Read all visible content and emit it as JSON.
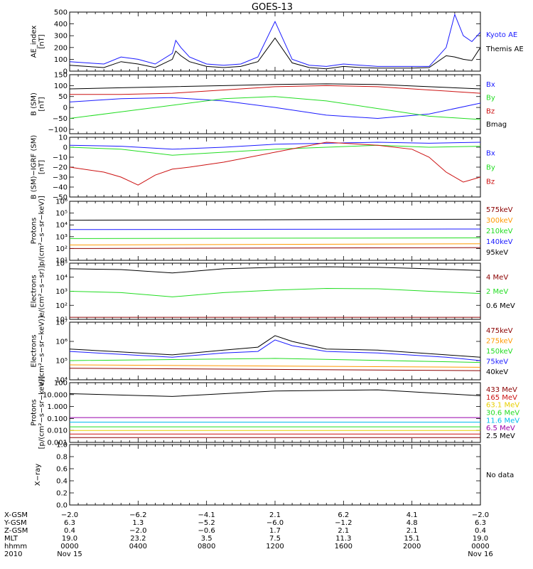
{
  "title": "GOES-13",
  "colors": {
    "black": "#000000",
    "blue": "#1a1aff",
    "green": "#22dd22",
    "red": "#cc1111",
    "orange": "#ff9900",
    "darkred": "#8b0000",
    "yellow": "#e8d000",
    "cyan": "#00bbee",
    "purple": "#9900aa"
  },
  "chart_data": [
    {
      "type": "line",
      "id": "ae",
      "ylabel_lines": [
        "AE_index",
        "[nT]"
      ],
      "ylim": [
        0,
        500
      ],
      "yticks": [
        "500",
        "400",
        "300",
        "200",
        "100",
        "0"
      ],
      "ytick_values": [
        500,
        400,
        300,
        200,
        100,
        0
      ],
      "series": [
        {
          "name": "Kyoto AE",
          "color": "blue",
          "x": [
            0,
            1,
            2,
            3,
            4,
            5,
            6,
            6.2,
            6.5,
            7,
            8,
            9,
            10,
            11,
            12,
            13,
            14,
            15,
            16,
            17,
            18,
            19,
            20,
            21,
            22,
            22.5,
            23,
            23.5,
            24
          ],
          "values": [
            80,
            70,
            60,
            120,
            100,
            60,
            150,
            260,
            200,
            120,
            60,
            50,
            60,
            120,
            420,
            100,
            50,
            40,
            60,
            50,
            40,
            40,
            40,
            40,
            200,
            480,
            300,
            250,
            330
          ]
        },
        {
          "name": "Themis AE",
          "color": "black",
          "x": [
            0,
            1,
            2,
            3,
            4,
            5,
            6,
            6.2,
            6.5,
            7,
            8,
            9,
            10,
            11,
            12,
            13,
            14,
            15,
            16,
            17,
            18,
            19,
            20,
            21,
            22,
            22.5,
            23,
            23.5,
            24
          ],
          "values": [
            50,
            40,
            30,
            80,
            60,
            30,
            100,
            170,
            130,
            80,
            40,
            30,
            40,
            80,
            280,
            70,
            30,
            20,
            40,
            30,
            25,
            25,
            25,
            30,
            130,
            120,
            100,
            90,
            200
          ]
        }
      ]
    },
    {
      "type": "line",
      "id": "bsm",
      "ylabel_lines": [
        "B (SM)",
        "[nT]"
      ],
      "ylim": [
        -120,
        150
      ],
      "yticks": [
        "150",
        "100",
        "50",
        "0",
        "−50",
        "−100"
      ],
      "ytick_values": [
        150,
        100,
        50,
        0,
        -50,
        -100
      ],
      "series": [
        {
          "name": "Bx",
          "color": "blue",
          "x": [
            0,
            3,
            6,
            9,
            12,
            15,
            18,
            21,
            24
          ],
          "values": [
            25,
            40,
            45,
            30,
            0,
            -35,
            -50,
            -30,
            20
          ]
        },
        {
          "name": "By",
          "color": "green",
          "x": [
            0,
            3,
            6,
            9,
            12,
            15,
            18,
            21,
            24
          ],
          "values": [
            -50,
            -20,
            10,
            40,
            50,
            30,
            -5,
            -40,
            -55
          ]
        },
        {
          "name": "Bz",
          "color": "red",
          "x": [
            0,
            3,
            6,
            9,
            12,
            15,
            18,
            21,
            24
          ],
          "values": [
            60,
            60,
            65,
            80,
            95,
            100,
            95,
            80,
            65
          ]
        },
        {
          "name": "Bmag",
          "color": "black",
          "x": [
            0,
            3,
            6,
            9,
            12,
            15,
            18,
            21,
            24
          ],
          "values": [
            85,
            90,
            95,
            100,
            105,
            108,
            105,
            95,
            85
          ]
        }
      ]
    },
    {
      "type": "line",
      "id": "bigrf",
      "ylabel_lines": [
        "B (SM)−IGRF (SM)",
        "[nT]"
      ],
      "ylim": [
        -50,
        10
      ],
      "yticks": [
        "10",
        "0",
        "−10",
        "−20",
        "−30",
        "−40",
        "−50"
      ],
      "ytick_values": [
        10,
        0,
        -10,
        -20,
        -30,
        -40,
        -50
      ],
      "series": [
        {
          "name": "Bx",
          "color": "blue",
          "x": [
            0,
            3,
            6,
            9,
            12,
            15,
            18,
            21,
            24
          ],
          "values": [
            2,
            1,
            -2,
            0,
            3,
            4,
            5,
            4,
            5
          ]
        },
        {
          "name": "By",
          "color": "green",
          "x": [
            0,
            3,
            6,
            9,
            12,
            15,
            18,
            21,
            24
          ],
          "values": [
            0,
            -2,
            -8,
            -5,
            -2,
            0,
            2,
            0,
            1
          ]
        },
        {
          "name": "Bz",
          "color": "red",
          "x": [
            0,
            2,
            3,
            4,
            5,
            6,
            7,
            9,
            12,
            15,
            18,
            20,
            21,
            22,
            23,
            24
          ],
          "values": [
            -20,
            -25,
            -30,
            -38,
            -28,
            -22,
            -20,
            -15,
            -5,
            5,
            2,
            -2,
            -10,
            -25,
            -35,
            -30
          ]
        }
      ]
    },
    {
      "type": "line",
      "id": "protons",
      "scale": "log",
      "ylabel_lines": [
        "Protons",
        "p/(cm²−s−sr−keV)]"
      ],
      "ylim": [
        10,
        1000000
      ],
      "yticks": [
        "10⁶",
        "10⁵",
        "10⁴",
        "10³",
        "10²",
        "10¹"
      ],
      "ytick_values": [
        1000000,
        100000,
        10000,
        1000,
        100,
        10
      ],
      "series": [
        {
          "name": "575keV",
          "color": "darkred",
          "x": [
            0,
            24
          ],
          "values": [
            100,
            120
          ]
        },
        {
          "name": "300keV",
          "color": "orange",
          "x": [
            0,
            24
          ],
          "values": [
            200,
            250
          ]
        },
        {
          "name": "210keV",
          "color": "green",
          "x": [
            0,
            24
          ],
          "values": [
            700,
            800
          ]
        },
        {
          "name": "140keV",
          "color": "blue",
          "x": [
            0,
            24
          ],
          "values": [
            4000,
            4500
          ]
        },
        {
          "name": "95keV",
          "color": "black",
          "x": [
            0,
            24
          ],
          "values": [
            25000,
            30000
          ]
        }
      ]
    },
    {
      "type": "line",
      "id": "elec_mev",
      "scale": "log",
      "ylabel_lines": [
        "Electrons",
        "e/(cm²−s−sr)]"
      ],
      "ylim": [
        10,
        100000
      ],
      "yticks": [
        "10⁵",
        "10⁴",
        "10³",
        "10²",
        "10¹"
      ],
      "ytick_values": [
        100000,
        10000,
        1000,
        100,
        10
      ],
      "series": [
        {
          "name": "4 MeV",
          "color": "darkred",
          "x": [
            0,
            24
          ],
          "values": [
            14,
            14
          ]
        },
        {
          "name": "2 MeV",
          "color": "green",
          "x": [
            0,
            3,
            6,
            9,
            12,
            15,
            18,
            21,
            24
          ],
          "values": [
            1000,
            800,
            400,
            800,
            1200,
            1600,
            1500,
            1000,
            700
          ]
        },
        {
          "name": "0.6 MeV",
          "color": "black",
          "x": [
            0,
            3,
            6,
            9,
            12,
            15,
            18,
            21,
            24
          ],
          "values": [
            40000,
            35000,
            20000,
            40000,
            50000,
            55000,
            50000,
            40000,
            30000
          ]
        }
      ]
    },
    {
      "type": "line",
      "id": "elec_kev",
      "scale": "log",
      "ylabel_lines": [
        "Electrons",
        "e/(cm²−s−sr−keV)]"
      ],
      "ylim": [
        10000,
        10000000
      ],
      "yticks": [
        "10⁷",
        "10⁶",
        "10⁵",
        "10⁴"
      ],
      "ytick_values": [
        10000000,
        1000000,
        100000,
        10000
      ],
      "series": [
        {
          "name": "475keV",
          "color": "darkred",
          "x": [
            0,
            24
          ],
          "values": [
            40000,
            30000
          ]
        },
        {
          "name": "275keV",
          "color": "orange",
          "x": [
            0,
            24
          ],
          "values": [
            60000,
            45000
          ]
        },
        {
          "name": "150keV",
          "color": "green",
          "x": [
            0,
            12,
            24
          ],
          "values": [
            100000,
            130000,
            80000
          ]
        },
        {
          "name": "75keV",
          "color": "blue",
          "x": [
            0,
            6,
            9,
            11,
            12,
            13,
            15,
            18,
            22,
            24
          ],
          "values": [
            300000,
            150000,
            250000,
            300000,
            1200000,
            600000,
            300000,
            250000,
            150000,
            100000
          ]
        },
        {
          "name": "40keV",
          "color": "black",
          "x": [
            0,
            6,
            9,
            11,
            12,
            13,
            15,
            18,
            22,
            24
          ],
          "values": [
            400000,
            200000,
            350000,
            500000,
            2000000,
            1000000,
            400000,
            350000,
            200000,
            150000
          ]
        }
      ]
    },
    {
      "type": "line",
      "id": "protons_mev",
      "scale": "log",
      "ylabel_lines": [
        "Protons",
        "[p/(cm²−s−sr−keV)]"
      ],
      "ylim": [
        0.001,
        100
      ],
      "yticks": [
        "100",
        "10.000",
        "1.000",
        "0.100",
        "0.010",
        "0.001"
      ],
      "ytick_values": [
        100,
        10,
        1,
        0.1,
        0.01,
        0.001
      ],
      "series": [
        {
          "name": "433 MeV",
          "color": "darkred",
          "x": [
            0,
            24
          ],
          "values": [
            0.0025,
            0.0025
          ]
        },
        {
          "name": "165 MeV",
          "color": "red",
          "x": [
            0,
            24
          ],
          "values": [
            0.005,
            0.005
          ]
        },
        {
          "name": "63.1 MeV",
          "color": "yellow",
          "x": [
            0,
            24
          ],
          "values": [
            0.01,
            0.01
          ]
        },
        {
          "name": "30.6 MeV",
          "color": "green",
          "x": [
            0,
            24
          ],
          "values": [
            0.02,
            0.02
          ]
        },
        {
          "name": "11.6 MeV",
          "color": "cyan",
          "x": [
            0,
            24
          ],
          "values": [
            0.05,
            0.05
          ]
        },
        {
          "name": "6.5 MeV",
          "color": "purple",
          "x": [
            0,
            24
          ],
          "values": [
            0.12,
            0.12
          ]
        },
        {
          "name": "2.5 MeV",
          "color": "black",
          "x": [
            0,
            6,
            12,
            18,
            24
          ],
          "values": [
            12,
            7,
            20,
            25,
            8
          ]
        }
      ]
    },
    {
      "type": "line",
      "id": "xray",
      "ylabel_lines": [
        "X−ray"
      ],
      "ylim": [
        0,
        1
      ],
      "yticks": [
        "1.0",
        "0.8",
        "0.6",
        "0.4",
        "0.2",
        "0.0"
      ],
      "ytick_values": [
        1,
        0.8,
        0.6,
        0.4,
        0.2,
        0
      ],
      "series": [],
      "note": "No data"
    }
  ],
  "orbit": {
    "rows": [
      {
        "label": "X-GSM",
        "values": [
          "−2.0",
          "−6.2",
          "−4.1",
          "2.1",
          "6.2",
          "4.1",
          "−2.0"
        ]
      },
      {
        "label": "Y-GSM",
        "values": [
          "6.3",
          "1.3",
          "−5.2",
          "−6.0",
          "−1.2",
          "4.8",
          "6.3"
        ]
      },
      {
        "label": "Z-GSM",
        "values": [
          "0.4",
          "−2.0",
          "−0.6",
          "1.7",
          "2.1",
          "2.1",
          "0.4"
        ]
      },
      {
        "label": "MLT",
        "values": [
          "19.0",
          "23.2",
          "3.5",
          "7.5",
          "11.3",
          "15.1",
          "19.0"
        ]
      },
      {
        "label": "hhmm",
        "values": [
          "0000",
          "0400",
          "0800",
          "1200",
          "1600",
          "2000",
          "0000"
        ]
      },
      {
        "label": "2010",
        "values": [
          "Nov 15",
          "",
          "",
          "",
          "",
          "",
          "Nov 16"
        ]
      }
    ]
  }
}
